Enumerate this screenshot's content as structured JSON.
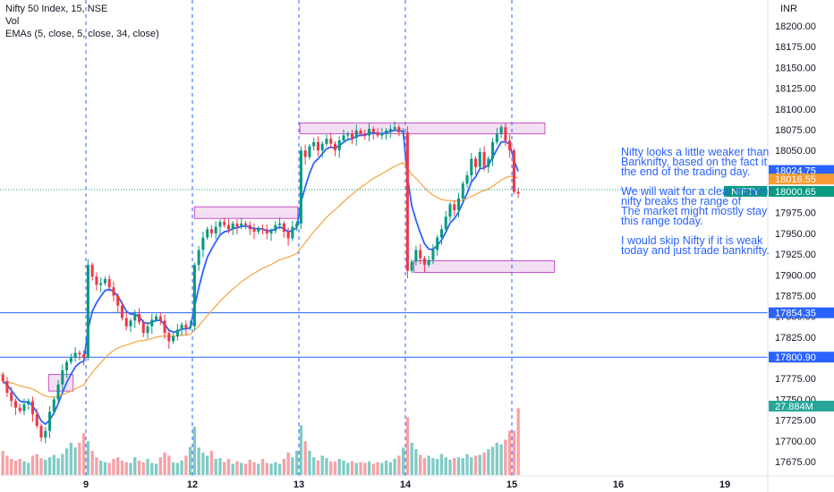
{
  "header": {
    "symbol_line": "Nifty 50 Index, 15, NSE",
    "volume_label": "Vol",
    "ema_line": "EMAs (5, close, 5, close, 34, close)"
  },
  "axis": {
    "currency": "INR"
  },
  "note": {
    "lines": [
      "Nifty looks a little weaker than",
      "Banknifty, based on the fact it",
      "the end of the trading day.",
      "",
      "We will wait for a clear move in",
      "nifty breaks the range of",
      "The market might mostly stay in",
      "this range today.",
      "",
      "I would skip Nifty if it is weak",
      "today and just trade banknifty."
    ]
  },
  "price_labels": [
    {
      "value": "18024.75",
      "bg": "#2962ff",
      "fg": "#ffffff"
    },
    {
      "value": "18016.55",
      "bg": "#f89b33",
      "fg": "#ffffff"
    },
    {
      "value": "18000.65",
      "bg": "#089981",
      "fg": "#ffffff",
      "tag": "NIFTY"
    },
    {
      "value": "17854.35",
      "bg": "#2962ff",
      "fg": "#ffffff"
    },
    {
      "value": "17800.90",
      "bg": "#2962ff",
      "fg": "#ffffff"
    },
    {
      "value": "27.884M",
      "bg": "#26a69a",
      "fg": "#ffffff"
    }
  ],
  "colors": {
    "up": "#089981",
    "down": "#f23645",
    "ema_fast": "#2962ff",
    "ema_slow": "#f5a442",
    "vol_up": "#80cbc4",
    "vol_down": "#f7a1a6",
    "zone_fill": "#f3dff3",
    "zone_stroke": "#c653c6",
    "hline": "#2962ff",
    "session": "#2962ff"
  },
  "chart_data": {
    "type": "candlestick",
    "symbol": "Nifty 50 Index",
    "interval": "15",
    "exchange": "NSE",
    "y_ticks": [
      18200,
      18175,
      18150,
      18125,
      18100,
      18075,
      18050,
      18025,
      18000,
      17975,
      17950,
      17925,
      17900,
      17875,
      17850,
      17825,
      17800,
      17775,
      17750,
      17725,
      17700,
      17675
    ],
    "ylim": [
      17662,
      18225
    ],
    "x_ticks": [
      "9",
      "12",
      "13",
      "14",
      "15",
      "16",
      "19"
    ],
    "sessions": [
      {
        "day": "9",
        "start": 0
      },
      {
        "day": "12",
        "start": 1
      },
      {
        "day": "13",
        "start": 2
      },
      {
        "day": "14",
        "start": 3
      },
      {
        "day": "15",
        "start": 4
      }
    ],
    "sessions_after": [
      "16",
      "19"
    ],
    "horizontal_lines": [
      17854.35,
      17800.9
    ],
    "zones": [
      {
        "session_from": -0.35,
        "session_to": -0.12,
        "low": 17760,
        "high": 17780
      },
      {
        "session_from": 1.02,
        "session_to": 1.99,
        "low": 17968,
        "high": 17982
      },
      {
        "session_from": 2.01,
        "session_to": 4.31,
        "low": 18070,
        "high": 18083
      },
      {
        "session_from": 3.08,
        "session_to": 4.4,
        "low": 17903,
        "high": 17917
      }
    ],
    "last_close": 18000.65,
    "ema5_last": 18024.75,
    "ema34_last": 18016.55,
    "volume_last": "27.884M",
    "days": [
      {
        "day": "8",
        "closes": [
          17772,
          17758,
          17748,
          17740,
          17736,
          17744,
          17748,
          17732,
          17718,
          17704,
          17712,
          17735,
          17750,
          17768,
          17785,
          17795,
          17800,
          17806,
          17804,
          17800
        ],
        "volumes": [
          0.3,
          0.24,
          0.2,
          0.18,
          0.2,
          0.17,
          0.15,
          0.24,
          0.26,
          0.21,
          0.19,
          0.22,
          0.25,
          0.21,
          0.26,
          0.33,
          0.4,
          0.34,
          0.4,
          0.52
        ]
      },
      {
        "day": "9",
        "closes": [
          17912,
          17898,
          17888,
          17890,
          17895,
          17885,
          17875,
          17863,
          17848,
          17838,
          17845,
          17853,
          17843,
          17830,
          17838,
          17846,
          17850,
          17845,
          17830,
          17820,
          17826,
          17834,
          17840,
          17836,
          17838
        ],
        "volumes": [
          0.42,
          0.3,
          0.22,
          0.18,
          0.16,
          0.15,
          0.2,
          0.22,
          0.18,
          0.16,
          0.15,
          0.22,
          0.18,
          0.16,
          0.2,
          0.15,
          0.14,
          0.22,
          0.28,
          0.24,
          0.16,
          0.15,
          0.18,
          0.24,
          0.35
        ]
      },
      {
        "day": "12",
        "closes": [
          17912,
          17930,
          17945,
          17955,
          17950,
          17958,
          17964,
          17960,
          17955,
          17962,
          17958,
          17962,
          17960,
          17955,
          17952,
          17956,
          17954,
          17950,
          17953,
          17960,
          17962,
          17952,
          17944,
          17958,
          17962
        ],
        "volumes": [
          0.6,
          0.34,
          0.28,
          0.24,
          0.3,
          0.2,
          0.21,
          0.16,
          0.2,
          0.14,
          0.17,
          0.15,
          0.14,
          0.19,
          0.16,
          0.14,
          0.2,
          0.15,
          0.14,
          0.16,
          0.14,
          0.2,
          0.28,
          0.22,
          0.3
        ]
      },
      {
        "day": "13",
        "closes": [
          18050,
          18042,
          18055,
          18060,
          18050,
          18058,
          18064,
          18058,
          18050,
          18062,
          18068,
          18070,
          18065,
          18074,
          18070,
          18068,
          18076,
          18072,
          18068,
          18070,
          18074,
          18076,
          18078,
          18072,
          18072
        ],
        "volumes": [
          0.62,
          0.42,
          0.3,
          0.22,
          0.18,
          0.24,
          0.21,
          0.17,
          0.17,
          0.2,
          0.18,
          0.15,
          0.17,
          0.15,
          0.16,
          0.15,
          0.17,
          0.14,
          0.16,
          0.15,
          0.18,
          0.16,
          0.2,
          0.24,
          0.34
        ]
      },
      {
        "day": "14",
        "closes": [
          17905,
          17916,
          17930,
          17920,
          17912,
          17918,
          17930,
          17945,
          17955,
          17970,
          17985,
          17978,
          17992,
          18010,
          18020,
          18040,
          18030,
          18048,
          18030,
          18040,
          18060,
          18070,
          18078,
          18062,
          18050
        ],
        "volumes": [
          0.72,
          0.4,
          0.32,
          0.25,
          0.21,
          0.24,
          0.21,
          0.2,
          0.26,
          0.22,
          0.19,
          0.21,
          0.22,
          0.21,
          0.26,
          0.22,
          0.24,
          0.25,
          0.28,
          0.32,
          0.35,
          0.4,
          0.38,
          0.44,
          0.55
        ]
      },
      {
        "day": "15",
        "closes": [
          18000,
          17998
        ],
        "volumes": [
          0.55,
          0.83
        ]
      }
    ]
  }
}
